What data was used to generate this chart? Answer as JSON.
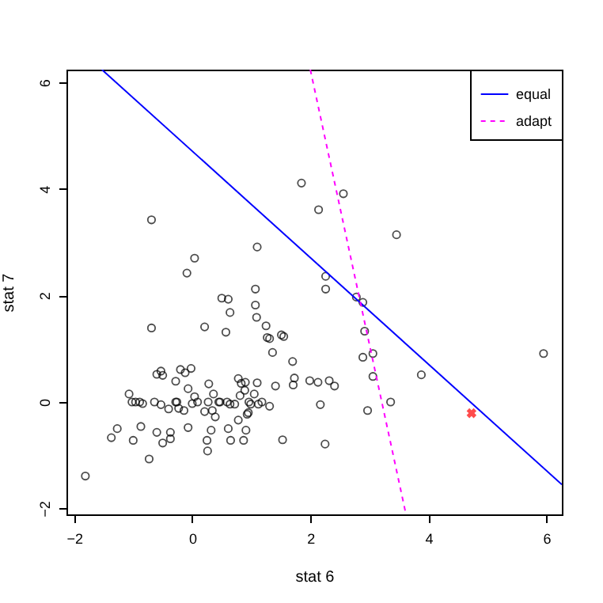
{
  "chart_data": {
    "type": "scatter",
    "xlabel": "stat 6",
    "ylabel": "stat 7",
    "xlim": [
      -2.13,
      6.26
    ],
    "ylim": [
      -2.11,
      6.24
    ],
    "xticks": [
      -2,
      0,
      2,
      4,
      6
    ],
    "yticks": [
      -2,
      0,
      2,
      4,
      6
    ],
    "grid": false,
    "legend": "top right",
    "series": [
      {
        "marker": "circle",
        "color": "#000000",
        "x": [
          -1.81,
          -1.37,
          -1.27,
          -1.07,
          -1.02,
          -0.96,
          -0.89,
          -0.84,
          -1.0,
          -0.87,
          -0.73,
          -0.69,
          -0.69,
          -0.64,
          -0.6,
          -0.6,
          -0.53,
          -0.53,
          -0.5,
          -0.5,
          -0.4,
          -0.37,
          -0.37,
          -0.28,
          -0.26,
          -0.28,
          -0.23,
          -0.2,
          -0.14,
          -0.12,
          -0.09,
          -0.07,
          -0.07,
          -0.02,
          0,
          0.04,
          0.04,
          0.09,
          0.21,
          0.21,
          0.25,
          0.26,
          0.28,
          0.27,
          0.32,
          0.34,
          0.36,
          0.39,
          0.45,
          0.47,
          0.5,
          0.57,
          0.59,
          0.61,
          0.61,
          0.64,
          0.65,
          0.64,
          0.72,
          0.78,
          0.78,
          0.81,
          0.83,
          0.87,
          0.89,
          0.9,
          0.91,
          0.93,
          0.95,
          0.96,
          0.99,
          1.05,
          1.07,
          1.07,
          1.09,
          1.1,
          1.1,
          1.12,
          1.18,
          1.25,
          1.27,
          1.31,
          1.31,
          1.36,
          1.41,
          1.51,
          1.55,
          1.53,
          1.7,
          1.71,
          1.73,
          1.85,
          1.99,
          2.14,
          2.13,
          2.17,
          2.25,
          2.26,
          2.26,
          2.32,
          2.41,
          2.56,
          2.78,
          2.89,
          2.92,
          2.89,
          2.97,
          3.06,
          3.06,
          3.36,
          3.46,
          3.88,
          5.95
        ],
        "values": [
          -1.39,
          -0.67,
          -0.5,
          0.15,
          0,
          0,
          0,
          -0.03,
          -0.72,
          -0.46,
          -1.07,
          1.39,
          3.42,
          0,
          0.52,
          -0.57,
          0.58,
          -0.05,
          0.5,
          -0.77,
          -0.13,
          -0.57,
          -0.69,
          0,
          0,
          0.39,
          -0.12,
          0.61,
          -0.16,
          0.55,
          2.42,
          -0.48,
          0.25,
          0.63,
          -0.03,
          2.7,
          0.1,
          0,
          1.41,
          -0.18,
          -0.72,
          -0.92,
          0.34,
          0,
          -0.53,
          -0.16,
          0.15,
          -0.28,
          0,
          0,
          1.95,
          1.31,
          0,
          1.93,
          -0.5,
          1.68,
          -0.72,
          -0.04,
          -0.04,
          -0.34,
          0.44,
          0.12,
          0.35,
          -0.72,
          0.22,
          0.37,
          -0.53,
          -0.23,
          -0.2,
          0,
          -0.04,
          0.15,
          2.12,
          1.82,
          1.59,
          2.91,
          0.36,
          -0.04,
          0,
          1.43,
          1.21,
          1.19,
          -0.08,
          0.93,
          0.3,
          1.26,
          1.23,
          -0.71,
          0.76,
          0.32,
          0.45,
          4.11,
          0.4,
          3.61,
          0.37,
          -0.05,
          -0.79,
          2.36,
          2.12,
          0.4,
          0.3,
          3.91,
          1.97,
          1.87,
          1.33,
          0.84,
          -0.16,
          0.91,
          0.48,
          0,
          3.14,
          0.51,
          0.91
        ]
      },
      {
        "marker": "cross",
        "color": "#ff0000",
        "x": [
          4.73
        ],
        "values": [
          -0.21
        ]
      },
      {
        "type": "line",
        "name": "equal",
        "color": "#0000ff",
        "line_style": "solid",
        "x": [
          -1.53,
          6.26
        ],
        "values": [
          6.24,
          -1.55
        ]
      },
      {
        "type": "line",
        "name": "adapt",
        "color": "#ff00ff",
        "line_style": "dashed",
        "x": [
          2.0,
          3.62
        ],
        "values": [
          6.24,
          -2.11
        ]
      }
    ]
  }
}
